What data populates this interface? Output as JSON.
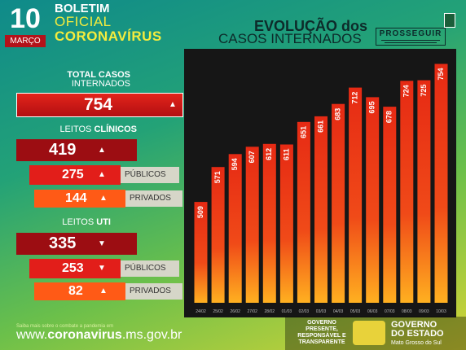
{
  "header": {
    "day": "10",
    "month": "MARÇO",
    "boletim": "BOLETIM",
    "oficial": "OFICIAL",
    "coronavirus": "CORONAVÍRUS",
    "evolucao_line1": "EVOLUÇÃO dos",
    "evolucao_line2": "CASOS INTERNADOS",
    "prosseguir": "PROSSEGUIR"
  },
  "total": {
    "label_line1": "TOTAL CASOS",
    "label_line2": "INTERNADOS",
    "value": "754",
    "trend_icon": "arrow-up-icon"
  },
  "clinicos": {
    "label_prefix": "LEITOS",
    "label_strong": "CLÍNICOS",
    "value": "419",
    "trend_icon": "arrow-up-icon",
    "publicos": {
      "value": "275",
      "label": "PÚBLICOS",
      "trend_icon": "arrow-up-icon"
    },
    "privados": {
      "value": "144",
      "label": "PRIVADOS",
      "trend_icon": "arrow-up-icon"
    }
  },
  "uti": {
    "label_prefix": "LEITOS",
    "label_strong": "UTI",
    "value": "335",
    "trend_icon": "arrow-down-icon",
    "publicos": {
      "value": "253",
      "label": "PÚBLICOS",
      "trend_icon": "arrow-down-icon"
    },
    "privados": {
      "value": "82",
      "label": "PRIVADOS",
      "trend_icon": "arrow-up-icon"
    }
  },
  "chart_data": {
    "type": "bar",
    "title": "EVOLUÇÃO dos CASOS INTERNADOS",
    "categories": [
      "24/02",
      "25/02",
      "26/02",
      "27/02",
      "28/02",
      "01/03",
      "02/03",
      "03/03",
      "04/03",
      "05/03",
      "06/03",
      "07/03",
      "08/03",
      "09/03",
      "10/03"
    ],
    "values": [
      509,
      571,
      594,
      607,
      612,
      611,
      651,
      661,
      683,
      712,
      695,
      678,
      724,
      725,
      754
    ],
    "ylim": [
      330,
      775
    ],
    "grid": false,
    "colors": {
      "bar_top": "#e62a14",
      "bar_bottom": "#ffb020",
      "label": "#ffffff"
    }
  },
  "footer": {
    "note": "Saiba mais sobre o combate a pandemia em",
    "url_prefix": "www.",
    "url_strong": "coronavirus",
    "url_suffix": ".ms.gov.br",
    "gov_slogan": "GOVERNO PRESENTE, RESPONSÁVEL E TRANSPARENTE",
    "gov_name_line1": "GOVERNO",
    "gov_name_line2": "DO ESTADO",
    "gov_name_line3": "Mato Grosso do Sul"
  }
}
